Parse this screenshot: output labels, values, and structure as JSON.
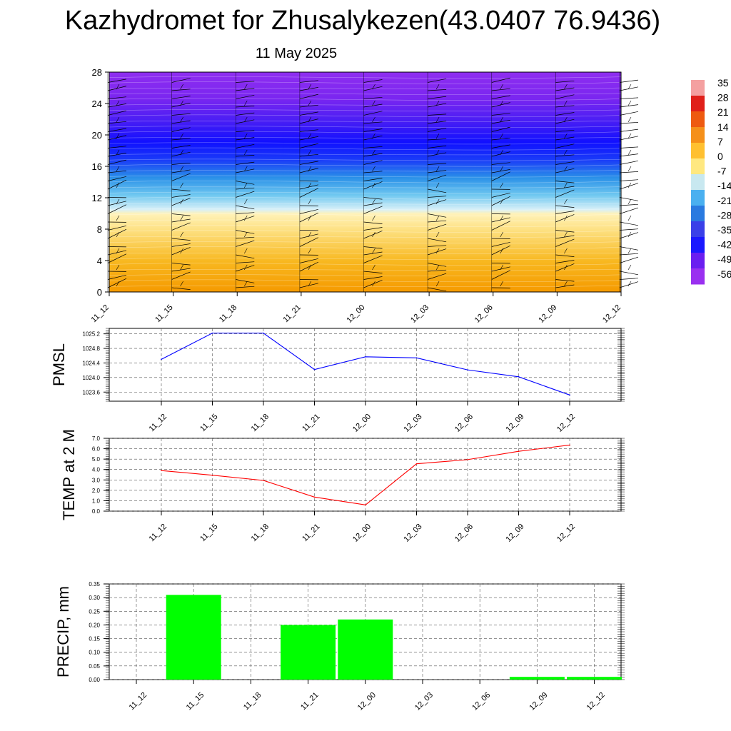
{
  "header": {
    "title": "Kazhydromet for Zhusalykezen(43.0407 76.9436)",
    "date": "11 May 2025"
  },
  "chart_data": [
    {
      "type": "heatmap",
      "y_ticks": [
        0,
        4,
        8,
        12,
        16,
        20,
        24,
        28
      ],
      "ylim": [
        0,
        28
      ],
      "x_ticks": [
        "11_12",
        "11_15",
        "11_18",
        "11_21",
        "12_00",
        "12_03",
        "12_06",
        "12_09",
        "12_12"
      ],
      "colorbar": {
        "labels": [
          "35",
          "28",
          "21",
          "14",
          "7",
          "0",
          "-7",
          "-14",
          "-21",
          "-28",
          "-35",
          "-42",
          "-49",
          "-56"
        ],
        "colors": [
          "#f4a0a0",
          "#e0201a",
          "#ee5a10",
          "#f5901a",
          "#ffc030",
          "#ffe880",
          "#c8e8f0",
          "#4ab0f0",
          "#2a7ae0",
          "#3a40e8",
          "#1a18ff",
          "#6a1ef0",
          "#9a30f0"
        ]
      },
      "bands": [
        {
          "from": 0,
          "to": 10,
          "value": 5
        },
        {
          "from": 10,
          "to": 13.5,
          "value": -15
        },
        {
          "from": 13.5,
          "to": 16.5,
          "value": -30
        },
        {
          "from": 16.5,
          "to": 21,
          "value": -50
        },
        {
          "from": 21,
          "to": 28,
          "value": -58
        }
      ]
    },
    {
      "type": "line",
      "ylabel": "PMSL",
      "x": [
        "11_12",
        "11_15",
        "11_18",
        "11_21",
        "12_00",
        "12_03",
        "12_06",
        "12_09",
        "12_12"
      ],
      "values": [
        1024.5,
        1025.22,
        1025.22,
        1024.22,
        1024.57,
        1024.54,
        1024.21,
        1024.02,
        1023.52
      ],
      "ylim": [
        1023.35,
        1025.35
      ],
      "y_ticks": [
        "1023.6",
        "1024.0",
        "1024.4",
        "1024.8",
        "1025.2"
      ],
      "color": "#0000ff",
      "grid": true
    },
    {
      "type": "line",
      "ylabel": "TEMP at 2 M",
      "x": [
        "11_12",
        "11_15",
        "11_18",
        "11_21",
        "12_00",
        "12_03",
        "12_06",
        "12_09",
        "12_12"
      ],
      "values": [
        3.9,
        3.45,
        2.95,
        1.35,
        0.6,
        4.55,
        4.95,
        5.75,
        6.35
      ],
      "ylim": [
        0,
        7
      ],
      "y_ticks": [
        "0.0",
        "1.0",
        "2.0",
        "3.0",
        "4.0",
        "5.0",
        "6.0",
        "7.0"
      ],
      "color": "#ff0000",
      "grid": true
    },
    {
      "type": "bar",
      "ylabel": "PRECIP, mm",
      "categories": [
        "11_12",
        "11_15",
        "11_18",
        "11_21",
        "12_00",
        "12_03",
        "12_06",
        "12_09",
        "12_12"
      ],
      "values": [
        0,
        0.31,
        0,
        0.2,
        0.22,
        0,
        0,
        0.01,
        0.01
      ],
      "ylim": [
        0,
        0.35
      ],
      "y_ticks": [
        "0.00",
        "0.05",
        "0.10",
        "0.15",
        "0.20",
        "0.25",
        "0.30",
        "0.35"
      ],
      "color": "#00ff00",
      "grid": true
    }
  ]
}
